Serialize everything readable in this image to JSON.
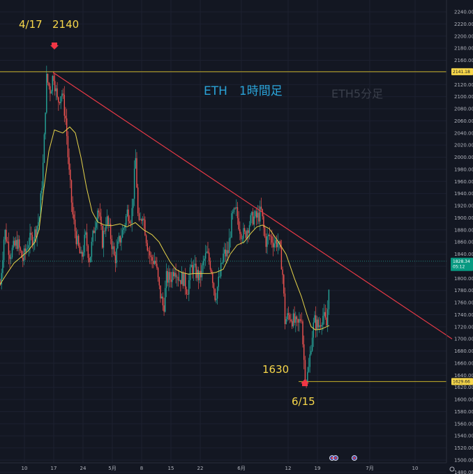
{
  "chart_data": {
    "type": "candlestick",
    "symbol": "ETH",
    "title": "ETH　1時間足",
    "watermark": "ETH5分足",
    "x_tick_labels": [
      "10",
      "17",
      "24",
      "5月",
      "8",
      "15",
      "22",
      "6月",
      "12",
      "19",
      "7月",
      "10"
    ],
    "y_tick_labels": [
      "2240.00",
      "2220.00",
      "2200.00",
      "2180.00",
      "2160.00",
      "2140.00",
      "2120.00",
      "2100.00",
      "2080.00",
      "2060.00",
      "2040.00",
      "2020.00",
      "2000.00",
      "1980.00",
      "1960.00",
      "1940.00",
      "1920.00",
      "1900.00",
      "1880.00",
      "1860.00",
      "1840.00",
      "1820.00",
      "1800.00",
      "1780.00",
      "1760.00",
      "1740.00",
      "1720.00",
      "1700.00",
      "1680.00",
      "1660.00",
      "1640.00",
      "1620.00",
      "1600.00",
      "1580.00",
      "1560.00",
      "1540.00",
      "1520.00",
      "1500.00",
      "1480.00"
    ],
    "y_ticks": [
      2240,
      2220,
      2200,
      2180,
      2160,
      2140,
      2120,
      2100,
      2080,
      2060,
      2040,
      2020,
      2000,
      1980,
      1960,
      1940,
      1920,
      1900,
      1880,
      1860,
      1840,
      1820,
      1800,
      1780,
      1760,
      1740,
      1720,
      1700,
      1680,
      1660,
      1640,
      1620,
      1600,
      1580,
      1560,
      1540,
      1520,
      1500,
      1480
    ],
    "ylim": [
      1470,
      2240
    ],
    "price_path": [
      [
        0,
        1790
      ],
      [
        6,
        1880
      ],
      [
        14,
        1840
      ],
      [
        24,
        1860
      ],
      [
        32,
        1830
      ],
      [
        40,
        1860
      ],
      [
        48,
        1870
      ],
      [
        56,
        1900
      ],
      [
        62,
        2000
      ],
      [
        66,
        2130
      ],
      [
        72,
        2110
      ],
      [
        76,
        2140
      ],
      [
        82,
        2090
      ],
      [
        88,
        2110
      ],
      [
        94,
        2060
      ],
      [
        98,
        1980
      ],
      [
        104,
        1900
      ],
      [
        110,
        1860
      ],
      [
        116,
        1830
      ],
      [
        122,
        1870
      ],
      [
        128,
        1830
      ],
      [
        134,
        1880
      ],
      [
        140,
        1920
      ],
      [
        146,
        1860
      ],
      [
        152,
        1900
      ],
      [
        158,
        1870
      ],
      [
        164,
        1830
      ],
      [
        170,
        1860
      ],
      [
        176,
        1880
      ],
      [
        182,
        1910
      ],
      [
        188,
        1900
      ],
      [
        194,
        2000
      ],
      [
        198,
        1880
      ],
      [
        204,
        1910
      ],
      [
        210,
        1860
      ],
      [
        216,
        1830
      ],
      [
        222,
        1830
      ],
      [
        228,
        1780
      ],
      [
        234,
        1750
      ],
      [
        238,
        1800
      ],
      [
        244,
        1800
      ],
      [
        250,
        1820
      ],
      [
        256,
        1800
      ],
      [
        262,
        1800
      ],
      [
        268,
        1780
      ],
      [
        274,
        1820
      ],
      [
        280,
        1810
      ],
      [
        286,
        1800
      ],
      [
        292,
        1830
      ],
      [
        296,
        1840
      ],
      [
        302,
        1820
      ],
      [
        308,
        1770
      ],
      [
        314,
        1800
      ],
      [
        320,
        1840
      ],
      [
        326,
        1840
      ],
      [
        332,
        1900
      ],
      [
        338,
        1910
      ],
      [
        344,
        1880
      ],
      [
        350,
        1870
      ],
      [
        356,
        1890
      ],
      [
        362,
        1900
      ],
      [
        368,
        1900
      ],
      [
        374,
        1910
      ],
      [
        380,
        1860
      ],
      [
        386,
        1870
      ],
      [
        392,
        1860
      ],
      [
        398,
        1860
      ],
      [
        404,
        1820
      ],
      [
        408,
        1730
      ],
      [
        414,
        1740
      ],
      [
        420,
        1730
      ],
      [
        426,
        1720
      ],
      [
        432,
        1740
      ],
      [
        434,
        1680
      ],
      [
        438,
        1630
      ],
      [
        442,
        1650
      ],
      [
        446,
        1700
      ],
      [
        450,
        1730
      ],
      [
        456,
        1720
      ],
      [
        462,
        1740
      ],
      [
        468,
        1720
      ],
      [
        472,
        1820
      ]
    ],
    "moving_average": [
      [
        0,
        1790
      ],
      [
        10,
        1808
      ],
      [
        20,
        1825
      ],
      [
        30,
        1835
      ],
      [
        40,
        1845
      ],
      [
        50,
        1860
      ],
      [
        56,
        1880
      ],
      [
        62,
        1940
      ],
      [
        70,
        2010
      ],
      [
        78,
        2045
      ],
      [
        90,
        2040
      ],
      [
        100,
        2050
      ],
      [
        108,
        2040
      ],
      [
        116,
        2000
      ],
      [
        124,
        1950
      ],
      [
        132,
        1910
      ],
      [
        140,
        1893
      ],
      [
        150,
        1888
      ],
      [
        160,
        1887
      ],
      [
        172,
        1890
      ],
      [
        182,
        1885
      ],
      [
        194,
        1892
      ],
      [
        206,
        1880
      ],
      [
        218,
        1872
      ],
      [
        228,
        1860
      ],
      [
        236,
        1843
      ],
      [
        244,
        1827
      ],
      [
        252,
        1815
      ],
      [
        260,
        1810
      ],
      [
        270,
        1807
      ],
      [
        280,
        1808
      ],
      [
        290,
        1808
      ],
      [
        300,
        1808
      ],
      [
        310,
        1810
      ],
      [
        320,
        1815
      ],
      [
        330,
        1840
      ],
      [
        340,
        1855
      ],
      [
        350,
        1860
      ],
      [
        360,
        1875
      ],
      [
        368,
        1885
      ],
      [
        376,
        1888
      ],
      [
        386,
        1882
      ],
      [
        398,
        1862
      ],
      [
        410,
        1840
      ],
      [
        422,
        1800
      ],
      [
        432,
        1770
      ],
      [
        440,
        1740
      ],
      [
        446,
        1720
      ],
      [
        452,
        1715
      ],
      [
        460,
        1716
      ],
      [
        468,
        1720
      ],
      [
        472,
        1722
      ]
    ],
    "trendline": {
      "from": [
        76,
        2140
      ],
      "to": [
        648,
        1700
      ]
    },
    "levels": [
      {
        "price": 2141.18,
        "label": "2141.18"
      },
      {
        "price": 1629.66,
        "label": "1629.66"
      }
    ],
    "current_price": {
      "price": 1828.34,
      "label": "1828.34",
      "countdown": "05:12"
    },
    "annotations": [
      {
        "text": "4/17",
        "color": "#f7d74a"
      },
      {
        "text": "2140",
        "color": "#f7d74a"
      },
      {
        "text": "1630",
        "color": "#f7d74a"
      },
      {
        "text": "6/15",
        "color": "#f7d74a"
      }
    ],
    "markers": [
      {
        "type": "down-arrow",
        "at": [
          78,
          2150
        ]
      },
      {
        "type": "up-arrow",
        "at": [
          437,
          1620
        ]
      }
    ],
    "colors": {
      "background": "#131722",
      "up": "#26a69a",
      "down": "#ef5350",
      "trendline": "#e63946",
      "ma": "#e6d34a",
      "level": "#c9b22a",
      "annotation": "#f7d74a",
      "title": "#2aa3d8",
      "axis_text": "#b2b5be"
    }
  }
}
